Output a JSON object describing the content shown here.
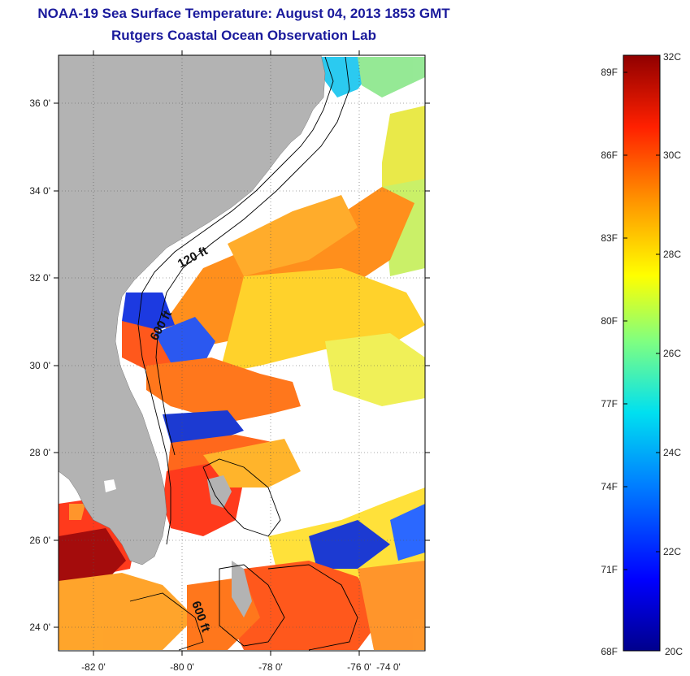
{
  "header": {
    "title": "NOAA-19 Sea Surface Temperature:  August 04, 2013 1853 GMT",
    "subtitle": "Rutgers Coastal Ocean Observation Lab"
  },
  "map": {
    "lon_ticks": [
      "-82 0'",
      "-80 0'",
      "-78 0'",
      "-76 0'",
      "-74 0'"
    ],
    "lat_ticks": [
      "36 0'",
      "34 0'",
      "32 0'",
      "30 0'",
      "28 0'",
      "26 0'",
      "24 0'"
    ],
    "contour_labels": [
      "120 ft",
      "600 ft",
      "600 ft"
    ],
    "colors": {
      "land": "#b3b3b3",
      "no_data": "#ffffff",
      "frame": "#000000"
    }
  },
  "colorbar": {
    "fahrenheit_labels": [
      "89F",
      "86F",
      "83F",
      "80F",
      "77F",
      "74F",
      "71F",
      "68F"
    ],
    "celsius_labels": [
      "32C",
      "30C",
      "28C",
      "26C",
      "24C",
      "22C",
      "20C"
    ],
    "range_c": [
      20,
      32
    ],
    "colors": [
      "#00008c",
      "#0000ff",
      "#0080ff",
      "#00e0f0",
      "#80ff80",
      "#ffff00",
      "#ff9000",
      "#ff2000",
      "#900000"
    ]
  }
}
